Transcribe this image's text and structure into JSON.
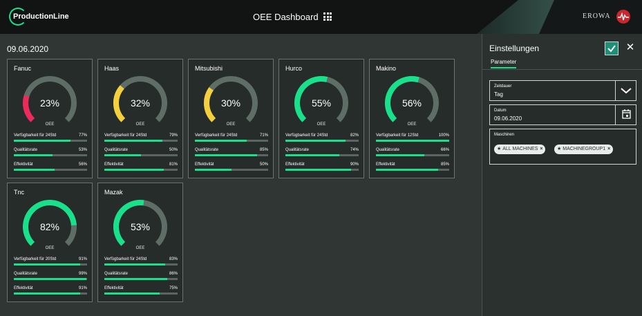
{
  "app": {
    "logo_text": "ProductionLine",
    "title": "OEE Dashboard",
    "brand": "EROWA",
    "grid_icon": "apps-grid-icon"
  },
  "colors": {
    "accent": "#19e08a",
    "bar_bg": "#5b6561",
    "gauge_bg": "#5e6e66",
    "red": "#ee2a5c",
    "yellow": "#f4d03f",
    "card_bg": "#262c2a"
  },
  "date": "09.06.2020",
  "machines": [
    {
      "name": "Fanuc",
      "oee": "23%",
      "oee_value": 23,
      "gauge_color": "red",
      "oee_label": "OEE",
      "metrics": [
        {
          "label": "Verfügbarkeit für 24Std",
          "value": "77%",
          "fraction": 0.77
        },
        {
          "label": "Qualitätsrate",
          "value": "53%",
          "fraction": 0.53
        },
        {
          "label": "Effektivität",
          "value": "56%",
          "fraction": 0.56
        }
      ]
    },
    {
      "name": "Haas",
      "oee": "32%",
      "oee_value": 32,
      "gauge_color": "yellow",
      "oee_label": "OEE",
      "metrics": [
        {
          "label": "Verfügbarkeit für 24Std",
          "value": "79%",
          "fraction": 0.79
        },
        {
          "label": "Qualitätsrate",
          "value": "50%",
          "fraction": 0.5
        },
        {
          "label": "Effektivität",
          "value": "81%",
          "fraction": 0.81
        }
      ]
    },
    {
      "name": "Mitsubishi",
      "oee": "30%",
      "oee_value": 30,
      "gauge_color": "yellow",
      "oee_label": "OEE",
      "metrics": [
        {
          "label": "Verfügbarkeit für 24Std",
          "value": "71%",
          "fraction": 0.71
        },
        {
          "label": "Qualitätsrate",
          "value": "85%",
          "fraction": 0.85
        },
        {
          "label": "Effektivität",
          "value": "50%",
          "fraction": 0.5
        }
      ]
    },
    {
      "name": "Hurco",
      "oee": "55%",
      "oee_value": 55,
      "gauge_color": "green",
      "oee_label": "OEE",
      "metrics": [
        {
          "label": "Verfügbarkeit für 24Std",
          "value": "82%",
          "fraction": 0.82
        },
        {
          "label": "Qualitätsrate",
          "value": "74%",
          "fraction": 0.74
        },
        {
          "label": "Effektivität",
          "value": "90%",
          "fraction": 0.9
        }
      ]
    },
    {
      "name": "Makino",
      "oee": "56%",
      "oee_value": 56,
      "gauge_color": "green",
      "oee_label": "OEE",
      "metrics": [
        {
          "label": "Verfügbarkeit für 12Std",
          "value": "100%",
          "fraction": 1.0
        },
        {
          "label": "Qualitätsrate",
          "value": "66%",
          "fraction": 0.66
        },
        {
          "label": "Effektivität",
          "value": "85%",
          "fraction": 0.85
        }
      ]
    },
    {
      "name": "Tnc",
      "oee": "82%",
      "oee_value": 82,
      "gauge_color": "green",
      "oee_label": "OEE",
      "metrics": [
        {
          "label": "Verfügbarkeit für 20Std",
          "value": "91%",
          "fraction": 0.91
        },
        {
          "label": "Qualitätsrate",
          "value": "99%",
          "fraction": 0.99
        },
        {
          "label": "Effektivität",
          "value": "91%",
          "fraction": 0.91
        }
      ]
    },
    {
      "name": "Mazak",
      "oee": "53%",
      "oee_value": 53,
      "gauge_color": "green",
      "oee_label": "OEE",
      "metrics": [
        {
          "label": "Verfügbarkeit für 24Std",
          "value": "83%",
          "fraction": 0.83
        },
        {
          "label": "Qualitätsrate",
          "value": "86%",
          "fraction": 0.86
        },
        {
          "label": "Effektivität",
          "value": "75%",
          "fraction": 0.75
        }
      ]
    }
  ],
  "settings": {
    "title": "Einstellungen",
    "tab": "Parameter",
    "zeitdauer": {
      "label": "Zeitdauer",
      "value": "Tag"
    },
    "datum": {
      "label": "Datum",
      "value": "09.06.2020"
    },
    "maschinen": {
      "label": "Maschinen",
      "chips": [
        "ALL MACHINES",
        "MACHINEGROUP1"
      ]
    }
  }
}
